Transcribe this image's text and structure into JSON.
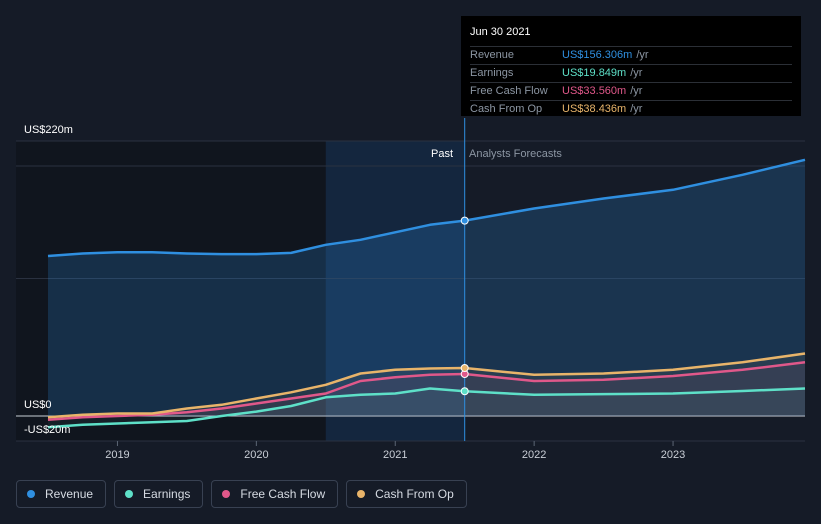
{
  "tooltip": {
    "date": "Jun 30 2021",
    "rows": [
      {
        "label": "Revenue",
        "value": "US$156.306m",
        "unit": "/yr",
        "color": "#2f8fe0"
      },
      {
        "label": "Earnings",
        "value": "US$19.849m",
        "unit": "/yr",
        "color": "#5ee0c8"
      },
      {
        "label": "Free Cash Flow",
        "value": "US$33.560m",
        "unit": "/yr",
        "color": "#e0588a"
      },
      {
        "label": "Cash From Op",
        "value": "US$38.436m",
        "unit": "/yr",
        "color": "#e8b46a"
      }
    ]
  },
  "legend": [
    {
      "label": "Revenue",
      "color": "#2f8fe0"
    },
    {
      "label": "Earnings",
      "color": "#5ee0c8"
    },
    {
      "label": "Free Cash Flow",
      "color": "#e0588a"
    },
    {
      "label": "Cash From Op",
      "color": "#e8b46a"
    }
  ],
  "chart_data": {
    "type": "line",
    "y_labels": {
      "top": "US$220m",
      "zero": "US$0",
      "bottom": "-US$20m"
    },
    "ylim": [
      -20,
      220
    ],
    "xlim": [
      2018.5,
      2023.95
    ],
    "x_ticks": [
      2019,
      2020,
      2021,
      2022,
      2023
    ],
    "x_tick_labels": [
      "2019",
      "2020",
      "2021",
      "2022",
      "2023"
    ],
    "past_label": "Past",
    "forecast_label": "Analysts Forecasts",
    "past_start": 2020.5,
    "divider_x": 2021.5,
    "series": [
      {
        "name": "Revenue",
        "color": "#2f8fe0",
        "x": [
          2018.5,
          2018.75,
          2019.0,
          2019.25,
          2019.5,
          2019.75,
          2020.0,
          2020.25,
          2020.5,
          2020.75,
          2021.0,
          2021.25,
          2021.5,
          2022.0,
          2022.5,
          2023.0,
          2023.5,
          2023.95
        ],
        "y": [
          128,
          130,
          131,
          131,
          130,
          129.5,
          129.5,
          130.5,
          137,
          141,
          147,
          153,
          156.3,
          166,
          174,
          181,
          193,
          205
        ]
      },
      {
        "name": "Earnings",
        "color": "#5ee0c8",
        "x": [
          2018.5,
          2018.75,
          2019.0,
          2019.25,
          2019.5,
          2019.75,
          2020.0,
          2020.25,
          2020.5,
          2020.75,
          2021.0,
          2021.25,
          2021.5,
          2022.0,
          2022.5,
          2023.0,
          2023.5,
          2023.95
        ],
        "y": [
          -9,
          -7,
          -6,
          -5,
          -4,
          0,
          3.5,
          8,
          15,
          17,
          18,
          22,
          19.8,
          17,
          17.5,
          18,
          20,
          22
        ]
      },
      {
        "name": "Free Cash Flow",
        "color": "#e0588a",
        "x": [
          2018.5,
          2018.75,
          2019.0,
          2019.25,
          2019.5,
          2019.75,
          2020.0,
          2020.25,
          2020.5,
          2020.75,
          2021.0,
          2021.25,
          2021.5,
          2022.0,
          2022.5,
          2023.0,
          2023.5,
          2023.95
        ],
        "y": [
          -3,
          -1,
          0,
          1,
          3,
          6,
          10,
          14,
          18,
          28,
          31,
          33,
          33.6,
          28,
          29,
          32,
          37,
          43
        ]
      },
      {
        "name": "Cash From Op",
        "color": "#e8b46a",
        "x": [
          2018.5,
          2018.75,
          2019.0,
          2019.25,
          2019.5,
          2019.75,
          2020.0,
          2020.25,
          2020.5,
          2020.75,
          2021.0,
          2021.25,
          2021.5,
          2022.0,
          2022.5,
          2023.0,
          2023.5,
          2023.95
        ],
        "y": [
          -1,
          1,
          2,
          2,
          6,
          9,
          14,
          19,
          25,
          34,
          37,
          38,
          38.4,
          33,
          34,
          37,
          43,
          50
        ]
      }
    ]
  }
}
